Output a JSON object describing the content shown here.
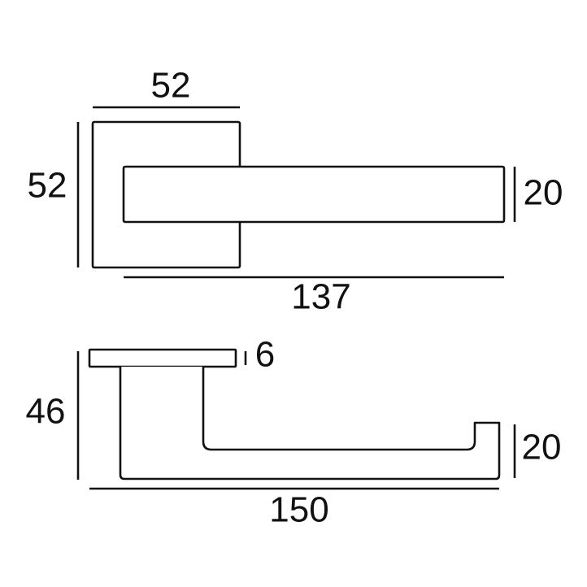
{
  "front_view": {
    "rose_width": 52,
    "rose_height": 52,
    "lever_height": 20,
    "lever_length": 137
  },
  "side_view": {
    "rose_thickness": 6,
    "height": 46,
    "lever_height": 20,
    "length": 150
  }
}
